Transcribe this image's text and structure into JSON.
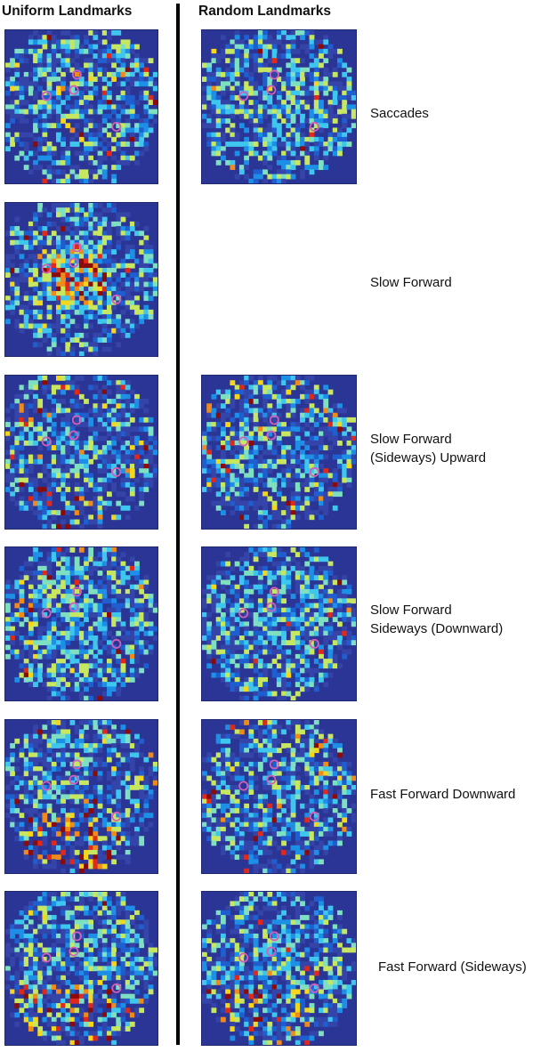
{
  "columns": {
    "left": "Uniform Landmarks",
    "right": "Random Landmarks"
  },
  "rows": [
    {
      "label_lines": [
        "Saccades"
      ],
      "has_right": true,
      "left": {
        "seed": 11,
        "density": 0.55,
        "hot": 0.06,
        "region": "full"
      },
      "right": {
        "seed": 12,
        "density": 0.62,
        "hot": 0.03,
        "region": "full"
      }
    },
    {
      "label_lines": [
        "Slow Forward"
      ],
      "has_right": false,
      "left": {
        "seed": 21,
        "density": 0.42,
        "hot": 0.18,
        "region": "center-hot"
      }
    },
    {
      "label_lines": [
        "Slow Forward",
        "(Sideways) Upward"
      ],
      "has_right": true,
      "left": {
        "seed": 31,
        "density": 0.5,
        "hot": 0.12,
        "region": "ring"
      },
      "right": {
        "seed": 32,
        "density": 0.55,
        "hot": 0.08,
        "region": "ring"
      }
    },
    {
      "label_lines": [
        "Slow Forward",
        "Sideways (Downward)"
      ],
      "has_right": true,
      "left": {
        "seed": 41,
        "density": 0.62,
        "hot": 0.05,
        "region": "ring"
      },
      "right": {
        "seed": 42,
        "density": 0.62,
        "hot": 0.03,
        "region": "ring"
      }
    },
    {
      "label_lines": [
        "Fast Forward Downward"
      ],
      "has_right": true,
      "left": {
        "seed": 51,
        "density": 0.55,
        "hot": 0.22,
        "region": "bottom-hot"
      },
      "right": {
        "seed": 52,
        "density": 0.55,
        "hot": 0.1,
        "region": "ring"
      }
    },
    {
      "label_lines": [
        "Fast Forward (Sideways)"
      ],
      "has_right": true,
      "left": {
        "seed": 61,
        "density": 0.58,
        "hot": 0.16,
        "region": "bottom-hot"
      },
      "right": {
        "seed": 62,
        "density": 0.62,
        "hot": 0.14,
        "region": "bottom-hot"
      }
    }
  ],
  "landmark_color": "#d35fb7",
  "colormap": [
    "#2b3596",
    "#1f5ecf",
    "#1e8fe6",
    "#3fc6ee",
    "#7ee0c0",
    "#c8e760",
    "#f5d61d",
    "#f08a1a",
    "#e0291a",
    "#8b0a0a"
  ]
}
